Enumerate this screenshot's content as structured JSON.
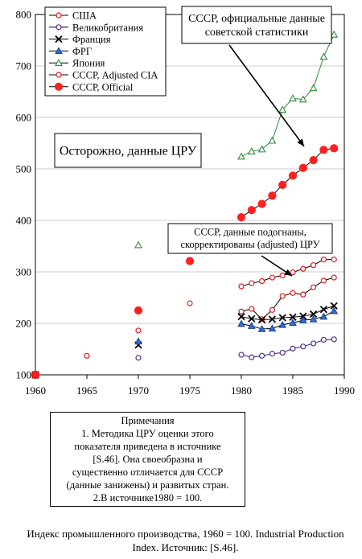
{
  "chart_data": {
    "type": "line",
    "title": "",
    "xlabel": "",
    "ylabel": "",
    "xlim": [
      1960,
      1990
    ],
    "ylim": [
      100,
      800
    ],
    "x_ticks": [
      "1960",
      "1965",
      "1970",
      "1975",
      "1980",
      "1985",
      "1990"
    ],
    "y_ticks": [
      "100",
      "200",
      "300",
      "400",
      "500",
      "600",
      "700",
      "800"
    ],
    "grid": "horizontal",
    "legend_position": "top-left",
    "series": [
      {
        "name": "США",
        "marker": "circle-open",
        "color": "#e41a1c",
        "line": false,
        "points": [
          [
            1960,
            100
          ],
          [
            1965,
            137
          ],
          [
            1970,
            186
          ],
          [
            1975,
            239
          ],
          [
            1980,
            223
          ],
          [
            1981,
            228
          ],
          [
            1982,
            208
          ],
          [
            1983,
            226
          ],
          [
            1984,
            253
          ],
          [
            1985,
            259
          ],
          [
            1986,
            256
          ],
          [
            1987,
            270
          ],
          [
            1988,
            283
          ],
          [
            1989,
            289
          ]
        ]
      },
      {
        "name": "Великобритания",
        "marker": "circle-open",
        "color": "#5b2d90",
        "line": false,
        "points": [
          [
            1970,
            133
          ],
          [
            1980,
            139
          ],
          [
            1981,
            134
          ],
          [
            1982,
            137
          ],
          [
            1983,
            141
          ],
          [
            1984,
            143
          ],
          [
            1985,
            151
          ],
          [
            1986,
            155
          ],
          [
            1987,
            161
          ],
          [
            1988,
            168
          ],
          [
            1989,
            169
          ]
        ]
      },
      {
        "name": "Франция",
        "marker": "x",
        "color": "#000000",
        "line": false,
        "points": [
          [
            1970,
            158
          ],
          [
            1980,
            213
          ],
          [
            1981,
            209
          ],
          [
            1982,
            207
          ],
          [
            1983,
            208
          ],
          [
            1984,
            211
          ],
          [
            1985,
            212
          ],
          [
            1986,
            214
          ],
          [
            1987,
            218
          ],
          [
            1988,
            227
          ],
          [
            1989,
            234
          ]
        ]
      },
      {
        "name": "ФРГ",
        "marker": "triangle-filled",
        "color": "#2f6fd6",
        "line": false,
        "points": [
          [
            1970,
            165
          ],
          [
            1980,
            199
          ],
          [
            1981,
            195
          ],
          [
            1982,
            189
          ],
          [
            1983,
            190
          ],
          [
            1984,
            197
          ],
          [
            1985,
            201
          ],
          [
            1986,
            206
          ],
          [
            1987,
            208
          ],
          [
            1988,
            213
          ],
          [
            1989,
            224
          ]
        ]
      },
      {
        "name": "Япония",
        "marker": "triangle-open",
        "color": "#2e8b3c",
        "line": false,
        "points": [
          [
            1970,
            352
          ],
          [
            1980,
            524
          ],
          [
            1981,
            534
          ],
          [
            1982,
            538
          ],
          [
            1983,
            555
          ],
          [
            1984,
            615
          ],
          [
            1985,
            637
          ],
          [
            1986,
            635
          ],
          [
            1987,
            657
          ],
          [
            1988,
            718
          ],
          [
            1989,
            761
          ]
        ]
      },
      {
        "name": "СССР,  Adjusted CIA",
        "marker": "circle-open",
        "color": "#e41a1c",
        "line": false,
        "points": [
          [
            1970,
            225
          ],
          [
            1980,
            272
          ],
          [
            1981,
            278
          ],
          [
            1982,
            282
          ],
          [
            1983,
            289
          ],
          [
            1984,
            293
          ],
          [
            1985,
            299
          ],
          [
            1986,
            306
          ],
          [
            1987,
            313
          ],
          [
            1988,
            324
          ],
          [
            1989,
            324
          ]
        ]
      },
      {
        "name": "СССР, Official",
        "marker": "circle-filled",
        "color": "#ff2020",
        "line": false,
        "points": [
          [
            1960,
            100
          ],
          [
            1970,
            225
          ],
          [
            1975,
            321
          ],
          [
            1980,
            406
          ],
          [
            1981,
            420
          ],
          [
            1982,
            432
          ],
          [
            1983,
            448
          ],
          [
            1984,
            469
          ],
          [
            1985,
            487
          ],
          [
            1986,
            502
          ],
          [
            1987,
            517
          ],
          [
            1988,
            537
          ],
          [
            1989,
            540
          ]
        ]
      }
    ],
    "annotations": [
      {
        "lines": [
          "СССР, официальные данные",
          "советской статистики"
        ]
      },
      {
        "lines": [
          "Осторожно, данные ЦРУ"
        ]
      },
      {
        "lines": [
          "СССР, данные подогнаны,",
          "скорректированы (adjusted) ЦРУ"
        ]
      }
    ]
  },
  "notes": {
    "lines": [
      "Примечания",
      "1. Методика ЦРУ оценки этого",
      "показателя приведена в источнике",
      "[S.46]. Она своеобразна и",
      "существенно отличается для СССР",
      "(данные занижены) и развитых стран.",
      "2.В источнике1980 = 100."
    ]
  },
  "caption": "Индекс промышленного производства, 1960 = 100. Industrial Production Index. Источник: [S.46]."
}
